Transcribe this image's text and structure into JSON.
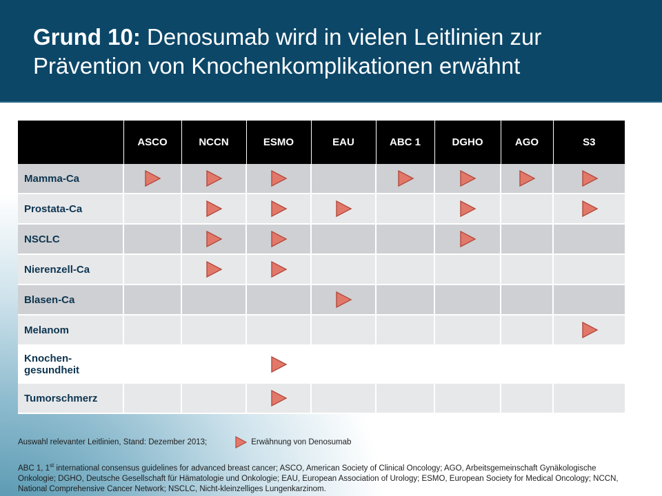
{
  "title": {
    "bold": "Grund 10:",
    "rest": " Denosumab wird in vielen Leitlinien zur Prävention von Knochenkomplikationen erwähnt"
  },
  "table": {
    "columns": [
      "ASCO",
      "NCCN",
      "ESMO",
      "EAU",
      "ABC 1",
      "DGHO",
      "AGO",
      "S3"
    ],
    "marker_color": "#e2786a",
    "marker_stroke": "#b24a3c",
    "rows": [
      {
        "label": "Mamma-Ca",
        "marks": [
          true,
          true,
          true,
          false,
          true,
          true,
          true,
          true
        ]
      },
      {
        "label": "Prostata-Ca",
        "marks": [
          false,
          true,
          true,
          true,
          false,
          true,
          false,
          true
        ]
      },
      {
        "label": "NSCLC",
        "marks": [
          false,
          true,
          true,
          false,
          false,
          true,
          false,
          false
        ]
      },
      {
        "label": "Nierenzell-Ca",
        "marks": [
          false,
          true,
          true,
          false,
          false,
          false,
          false,
          false
        ]
      },
      {
        "label": "Blasen-Ca",
        "marks": [
          false,
          false,
          false,
          true,
          false,
          false,
          false,
          false
        ]
      },
      {
        "label": "Melanom",
        "marks": [
          false,
          false,
          false,
          false,
          false,
          false,
          false,
          true
        ]
      },
      {
        "label": "Knochen-gesundheit",
        "marks": [
          false,
          false,
          true,
          false,
          false,
          false,
          false,
          false
        ]
      },
      {
        "label": "Tumorschmerz",
        "marks": [
          false,
          false,
          true,
          false,
          false,
          false,
          false,
          false
        ]
      }
    ]
  },
  "footer": {
    "selection_note": "Auswahl relevanter Leitlinien, Stand: Dezember 2013;",
    "legend_label": "Erwähnung von Denosumab",
    "abbrev_lead": "ABC 1, 1",
    "abbrev_sup": "st",
    "abbrev_rest": " international consensus guidelines for advanced breast cancer; ASCO, American Society of Clinical Oncology; AGO, Arbeitsgemeinschaft Gynäkologische Onkologie; DGHO, Deutsche Gesellschaft für Hämatologie und Onkologie; EAU, European Association of Urology; ESMO, European Society for Medical Oncology; NCCN, National Comprehensive Cancer Network; NSCLC, Nicht-kleinzelliges Lungenkarzinom."
  }
}
